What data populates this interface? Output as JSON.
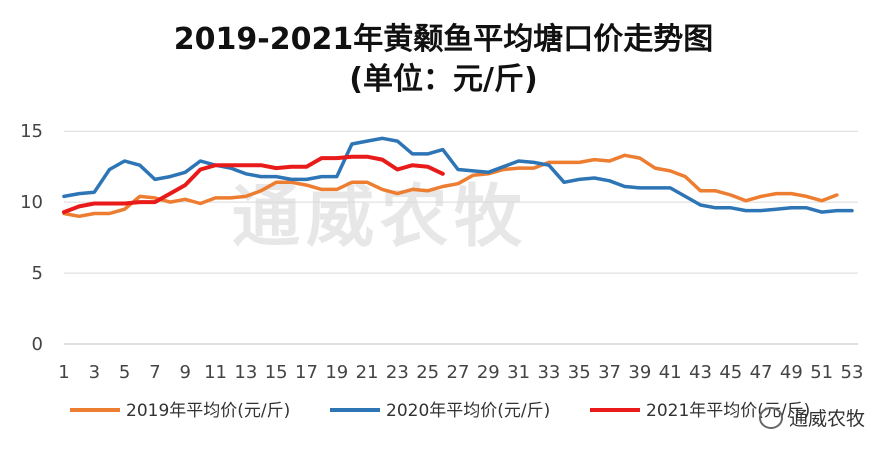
{
  "watermark": "通威农牧",
  "badge_text": "通威农牧",
  "colors": {
    "2019": "#ED7D31",
    "2020": "#2E75B6",
    "2021": "#E81A1A",
    "grid": "#D9D9D9",
    "axis": "#BFBFBF"
  },
  "chart_data": {
    "type": "line",
    "title": "2019-2021年黄颡鱼平均塘口价走势图",
    "subtitle": "(单位：元/斤)",
    "x": [
      1,
      2,
      3,
      4,
      5,
      6,
      7,
      8,
      9,
      10,
      11,
      12,
      13,
      14,
      15,
      16,
      17,
      18,
      19,
      20,
      21,
      22,
      23,
      24,
      25,
      26,
      27,
      28,
      29,
      30,
      31,
      32,
      33,
      34,
      35,
      36,
      37,
      38,
      39,
      40,
      41,
      42,
      43,
      44,
      45,
      46,
      47,
      48,
      49,
      50,
      51,
      52,
      53
    ],
    "x_tick_labels": [
      "1",
      "3",
      "5",
      "7",
      "9",
      "11",
      "13",
      "15",
      "17",
      "19",
      "21",
      "23",
      "25",
      "27",
      "29",
      "31",
      "33",
      "35",
      "37",
      "39",
      "41",
      "43",
      "45",
      "47",
      "49",
      "51",
      "53"
    ],
    "y_tick_labels": [
      "0",
      "5",
      "10",
      "15"
    ],
    "ylim": [
      0,
      16
    ],
    "grid": true,
    "legend_position": "bottom",
    "series": [
      {
        "name": "2019年平均价(元/斤)",
        "color": "#ED7D31",
        "values": [
          9.2,
          9.0,
          9.2,
          9.2,
          9.5,
          10.4,
          10.3,
          10.0,
          10.2,
          9.9,
          10.3,
          10.3,
          10.4,
          10.8,
          11.4,
          11.4,
          11.2,
          10.9,
          10.9,
          11.4,
          11.4,
          10.9,
          10.6,
          10.9,
          10.8,
          11.1,
          11.3,
          11.9,
          12.0,
          12.3,
          12.4,
          12.4,
          12.8,
          12.8,
          12.8,
          13.0,
          12.9,
          13.3,
          13.1,
          12.4,
          12.2,
          11.8,
          10.8,
          10.8,
          10.5,
          10.1,
          10.4,
          10.6,
          10.6,
          10.4,
          10.1,
          10.5,
          null
        ]
      },
      {
        "name": "2020年平均价(元/斤)",
        "color": "#2E75B6",
        "values": [
          10.4,
          10.6,
          10.7,
          12.3,
          12.9,
          12.6,
          11.6,
          11.8,
          12.1,
          12.9,
          12.6,
          12.4,
          12.0,
          11.8,
          11.8,
          11.6,
          11.6,
          11.8,
          11.8,
          14.1,
          14.3,
          14.5,
          14.3,
          13.4,
          13.4,
          13.7,
          12.3,
          12.2,
          12.1,
          12.5,
          12.9,
          12.8,
          12.6,
          11.4,
          11.6,
          11.7,
          11.5,
          11.1,
          11.0,
          11.0,
          11.0,
          10.4,
          9.8,
          9.6,
          9.6,
          9.4,
          9.4,
          9.5,
          9.6,
          9.6,
          9.3,
          9.4,
          9.4
        ]
      },
      {
        "name": "2021年平均价(元/斤)",
        "color": "#E81A1A",
        "values": [
          9.3,
          9.7,
          9.9,
          9.9,
          9.9,
          10.0,
          10.0,
          10.6,
          11.2,
          12.3,
          12.6,
          12.6,
          12.6,
          12.6,
          12.4,
          12.5,
          12.5,
          13.1,
          13.1,
          13.2,
          13.2,
          13.0,
          12.3,
          12.6,
          12.5,
          12.0,
          null,
          null,
          null,
          null,
          null,
          null,
          null,
          null,
          null,
          null,
          null,
          null,
          null,
          null,
          null,
          null,
          null,
          null,
          null,
          null,
          null,
          null,
          null,
          null,
          null,
          null,
          null
        ]
      }
    ]
  }
}
